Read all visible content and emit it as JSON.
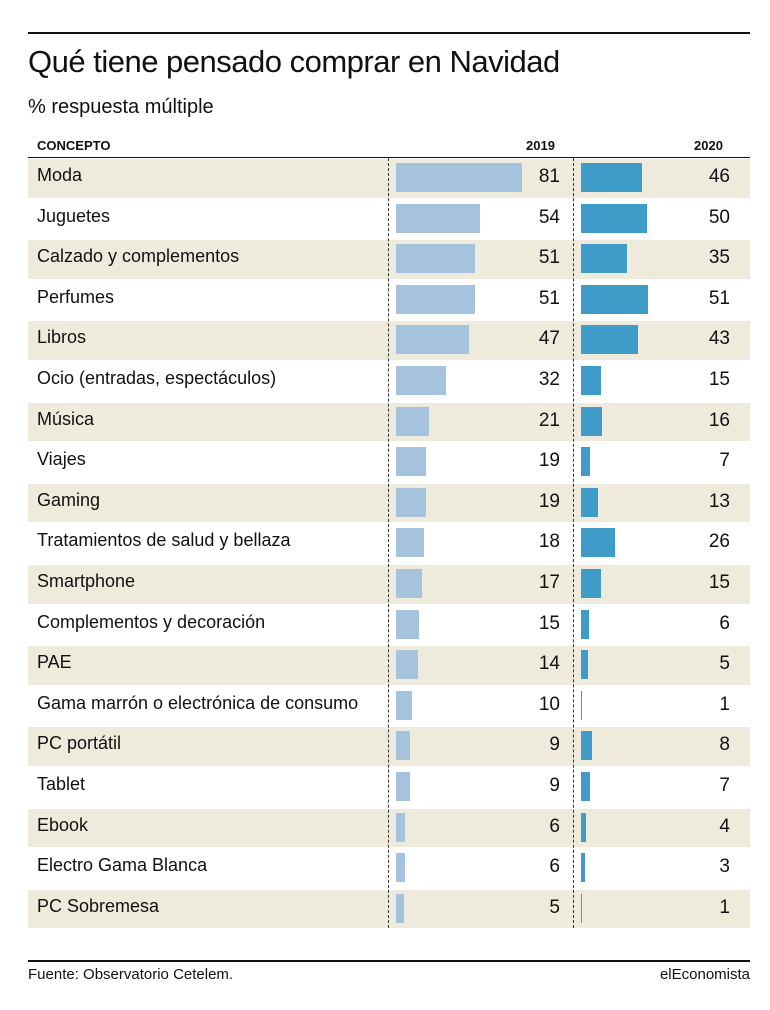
{
  "header": {
    "title": "Qué tiene pensado comprar en Navidad",
    "subtitle": "% respuesta múltiple",
    "col_concept": "CONCEPTO",
    "col_2019": "2019",
    "col_2020": "2020"
  },
  "footer": {
    "source": "Fuente: Observatorio Cetelem.",
    "brand": "elEconomista"
  },
  "colors": {
    "bar_2019": "#a5c3dc",
    "bar_2020": "#3f9cc9",
    "row_shade": "#eeebdc"
  },
  "chart_data": {
    "type": "bar",
    "orientation": "horizontal",
    "title": "Qué tiene pensado comprar en Navidad",
    "subtitle": "% respuesta múltiple",
    "categories": [
      "Moda",
      "Juguetes",
      "Calzado y complementos",
      "Perfumes",
      "Libros",
      "Ocio (entradas, espectáculos)",
      "Música",
      "Viajes",
      "Gaming",
      "Tratamientos de salud y bellaza",
      "Smartphone",
      "Complementos y decoración",
      "PAE",
      "Gama marrón o electrónica de consumo",
      "PC portátil",
      "Tablet",
      "Ebook",
      "Electro Gama Blanca",
      "PC Sobremesa"
    ],
    "series": [
      {
        "name": "2019",
        "values": [
          81,
          54,
          51,
          51,
          47,
          32,
          21,
          19,
          19,
          18,
          17,
          15,
          14,
          10,
          9,
          9,
          6,
          6,
          5
        ]
      },
      {
        "name": "2020",
        "values": [
          46,
          50,
          35,
          51,
          43,
          15,
          16,
          7,
          13,
          26,
          15,
          6,
          5,
          1,
          8,
          7,
          4,
          3,
          1
        ]
      }
    ],
    "xlim": [
      0,
      81
    ]
  }
}
